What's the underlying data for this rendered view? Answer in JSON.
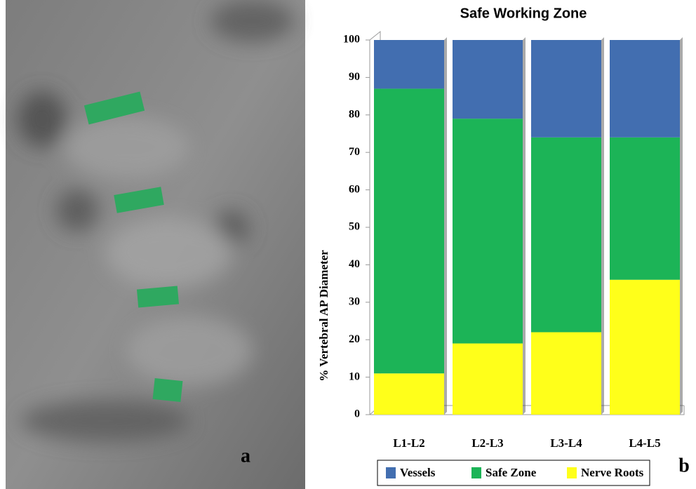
{
  "panel_labels": [
    "a",
    "b"
  ],
  "chart_data": {
    "type": "stacked_bar",
    "title": "Safe Working Zone",
    "y_label": "% Vertebral AP Diameter",
    "categories": [
      "L1-L2",
      "L2-L3",
      "L3-L4",
      "L4-L5"
    ],
    "series": [
      {
        "name": "Vessels",
        "color": "#426eb0",
        "values": [
          13,
          21,
          26,
          26
        ]
      },
      {
        "name": "Safe Zone",
        "color": "#1cb457",
        "values": [
          76,
          60,
          52,
          38
        ]
      },
      {
        "name": "Nerve Roots",
        "color": "#ffff1a",
        "values": [
          11,
          19,
          22,
          36
        ]
      }
    ],
    "ylim": [
      0,
      100
    ],
    "yticks": [
      0,
      10,
      20,
      30,
      40,
      50,
      60,
      70,
      80,
      90,
      100
    ],
    "legend": "bottom"
  }
}
